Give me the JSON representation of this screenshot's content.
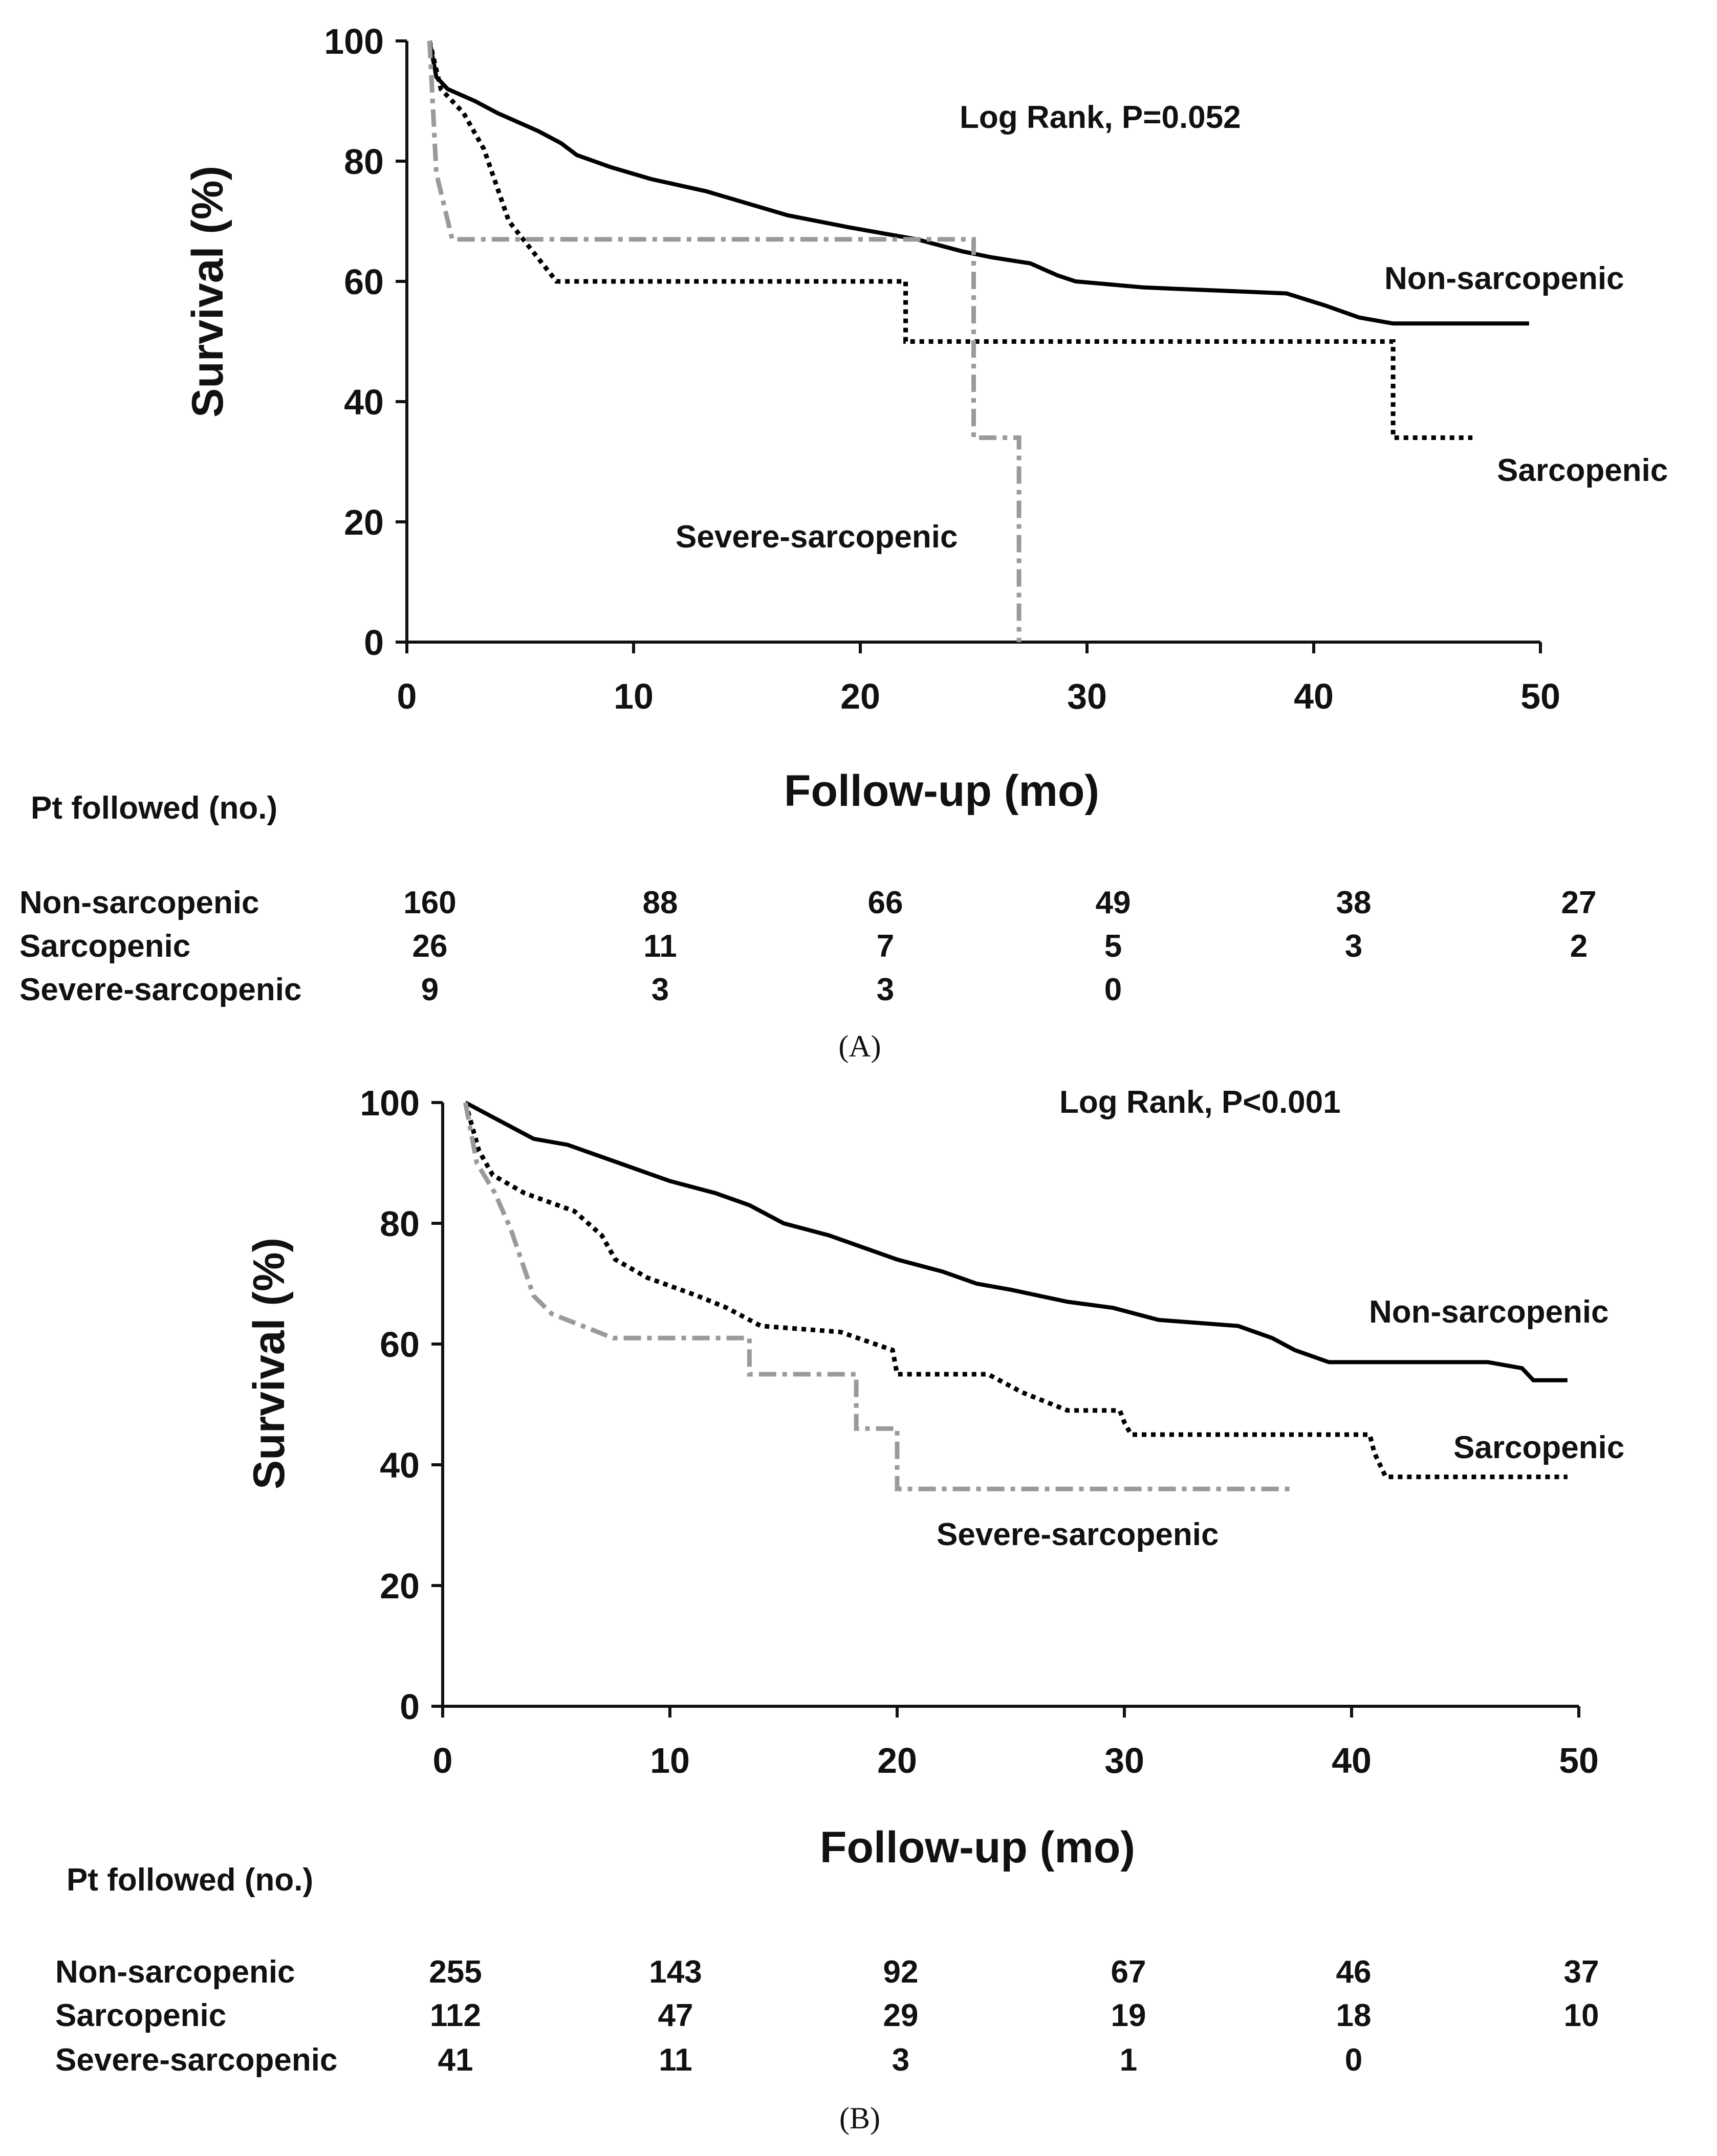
{
  "chart_data": [
    {
      "type": "line",
      "panel_label": "(A)",
      "annotation": "Log Rank, P=0.052",
      "xlabel": "Follow-up (mo)",
      "ylabel": "Survival (%)",
      "xlim": [
        0,
        50
      ],
      "ylim": [
        0,
        100
      ],
      "xticks": [
        0,
        10,
        20,
        30,
        40,
        50
      ],
      "yticks": [
        0,
        20,
        40,
        60,
        80,
        100
      ],
      "table_title": "Pt followed (no.)",
      "series": [
        {
          "name": "Non-sarcopenic",
          "label": "Non-sarcopenic",
          "style": "solid",
          "color": "#000000",
          "points": [
            [
              1,
              100
            ],
            [
              1.3,
              94
            ],
            [
              1.8,
              92
            ],
            [
              3,
              90
            ],
            [
              4,
              88
            ],
            [
              4.6,
              87
            ],
            [
              5.8,
              85
            ],
            [
              6.8,
              83
            ],
            [
              7.5,
              81
            ],
            [
              9,
              79
            ],
            [
              10.8,
              77
            ],
            [
              13.2,
              75
            ],
            [
              15,
              73
            ],
            [
              16.8,
              71
            ],
            [
              19.5,
              69
            ],
            [
              22.5,
              67
            ],
            [
              24.5,
              65
            ],
            [
              25.8,
              64
            ],
            [
              27.5,
              63
            ],
            [
              28.7,
              61
            ],
            [
              29.5,
              60
            ],
            [
              32.5,
              59
            ],
            [
              38.8,
              58
            ],
            [
              40.5,
              56
            ],
            [
              42,
              54
            ],
            [
              43.5,
              53
            ],
            [
              49.5,
              53
            ]
          ]
        },
        {
          "name": "Sarcopenic",
          "label": "Sarcopenic",
          "style": "dotted",
          "color": "#000000",
          "points": [
            [
              1,
              100
            ],
            [
              1.5,
              92
            ],
            [
              2.5,
              88
            ],
            [
              3.4,
              82
            ],
            [
              4.5,
              70
            ],
            [
              6.6,
              60
            ],
            [
              22,
              60
            ],
            [
              22,
              50
            ],
            [
              43.5,
              50
            ],
            [
              43.5,
              34
            ],
            [
              47,
              34
            ]
          ]
        },
        {
          "name": "Severe-sarcopenic",
          "label": "Severe-sarcopenic",
          "style": "dashdot",
          "color": "#9a9a9a",
          "points": [
            [
              1,
              100
            ],
            [
              1.3,
              78
            ],
            [
              2,
              67
            ],
            [
              25,
              67
            ],
            [
              25,
              34
            ],
            [
              27,
              34
            ],
            [
              27,
              0
            ]
          ]
        }
      ],
      "at_risk": {
        "times": [
          0,
          10,
          20,
          30,
          40,
          50
        ],
        "rows": [
          {
            "label": "Non-sarcopenic",
            "values": [
              "160",
              "88",
              "66",
              "49",
              "38",
              "27"
            ]
          },
          {
            "label": "Sarcopenic",
            "values": [
              "26",
              "11",
              "7",
              "5",
              "3",
              "2"
            ]
          },
          {
            "label": "Severe-sarcopenic",
            "values": [
              "9",
              "3",
              "3",
              "0",
              "",
              ""
            ]
          }
        ]
      }
    },
    {
      "type": "line",
      "panel_label": "(B)",
      "annotation": "Log Rank, P<0.001",
      "xlabel": "Follow-up (mo)",
      "ylabel": "Survival (%)",
      "xlim": [
        0,
        50
      ],
      "ylim": [
        0,
        100
      ],
      "xticks": [
        0,
        10,
        20,
        30,
        40,
        50
      ],
      "yticks": [
        0,
        20,
        40,
        60,
        80,
        100
      ],
      "table_title": "Pt followed (no.)",
      "series": [
        {
          "name": "Non-sarcopenic",
          "label": "Non-sarcopenic",
          "style": "solid",
          "color": "#000000",
          "points": [
            [
              1,
              100
            ],
            [
              2,
              98
            ],
            [
              3,
              96
            ],
            [
              4,
              94
            ],
            [
              5.5,
              93
            ],
            [
              7,
              91
            ],
            [
              8.5,
              89
            ],
            [
              10,
              87
            ],
            [
              12,
              85
            ],
            [
              13.5,
              83
            ],
            [
              15,
              80
            ],
            [
              17,
              78
            ],
            [
              18.5,
              76
            ],
            [
              20,
              74
            ],
            [
              22,
              72
            ],
            [
              23.5,
              70
            ],
            [
              25,
              69
            ],
            [
              27.5,
              67
            ],
            [
              29.5,
              66
            ],
            [
              30.5,
              65
            ],
            [
              31.5,
              64
            ],
            [
              35,
              63
            ],
            [
              36.5,
              61
            ],
            [
              37.5,
              59
            ],
            [
              39,
              57
            ],
            [
              46,
              57
            ],
            [
              47.5,
              56
            ],
            [
              48,
              54
            ],
            [
              49.5,
              54
            ]
          ]
        },
        {
          "name": "Sarcopenic",
          "label": "Sarcopenic",
          "style": "dotted",
          "color": "#000000",
          "points": [
            [
              1,
              100
            ],
            [
              1.6,
              92
            ],
            [
              2.2,
              88
            ],
            [
              3.6,
              85
            ],
            [
              5.8,
              82
            ],
            [
              7,
              78
            ],
            [
              7.6,
              74
            ],
            [
              9,
              71
            ],
            [
              11.2,
              68
            ],
            [
              12.5,
              66
            ],
            [
              14,
              63
            ],
            [
              17.5,
              62
            ],
            [
              19.8,
              59
            ],
            [
              20,
              55
            ],
            [
              24,
              55
            ],
            [
              25.5,
              52
            ],
            [
              27.5,
              49
            ],
            [
              29.8,
              49
            ],
            [
              30,
              47
            ],
            [
              30.3,
              45
            ],
            [
              40.8,
              45
            ],
            [
              41,
              42
            ],
            [
              41.5,
              38
            ],
            [
              49.5,
              38
            ]
          ]
        },
        {
          "name": "Severe-sarcopenic",
          "label": "Severe-sarcopenic",
          "style": "dashdot",
          "color": "#9a9a9a",
          "points": [
            [
              1,
              100
            ],
            [
              1.5,
              90
            ],
            [
              2.3,
              85
            ],
            [
              3,
              79
            ],
            [
              4,
              68
            ],
            [
              4.8,
              65
            ],
            [
              7.5,
              61
            ],
            [
              13.5,
              61
            ],
            [
              13.5,
              55
            ],
            [
              18.2,
              55
            ],
            [
              18.2,
              46
            ],
            [
              20,
              46
            ],
            [
              20,
              36
            ],
            [
              37.5,
              36
            ]
          ]
        }
      ],
      "at_risk": {
        "times": [
          0,
          10,
          20,
          30,
          40,
          50
        ],
        "rows": [
          {
            "label": "Non-sarcopenic",
            "values": [
              "255",
              "143",
              "92",
              "67",
              "46",
              "37"
            ]
          },
          {
            "label": "Sarcopenic",
            "values": [
              "112",
              "47",
              "29",
              "19",
              "18",
              "10"
            ]
          },
          {
            "label": "Severe-sarcopenic",
            "values": [
              "41",
              "11",
              "3",
              "1",
              "0",
              ""
            ]
          }
        ]
      }
    }
  ]
}
